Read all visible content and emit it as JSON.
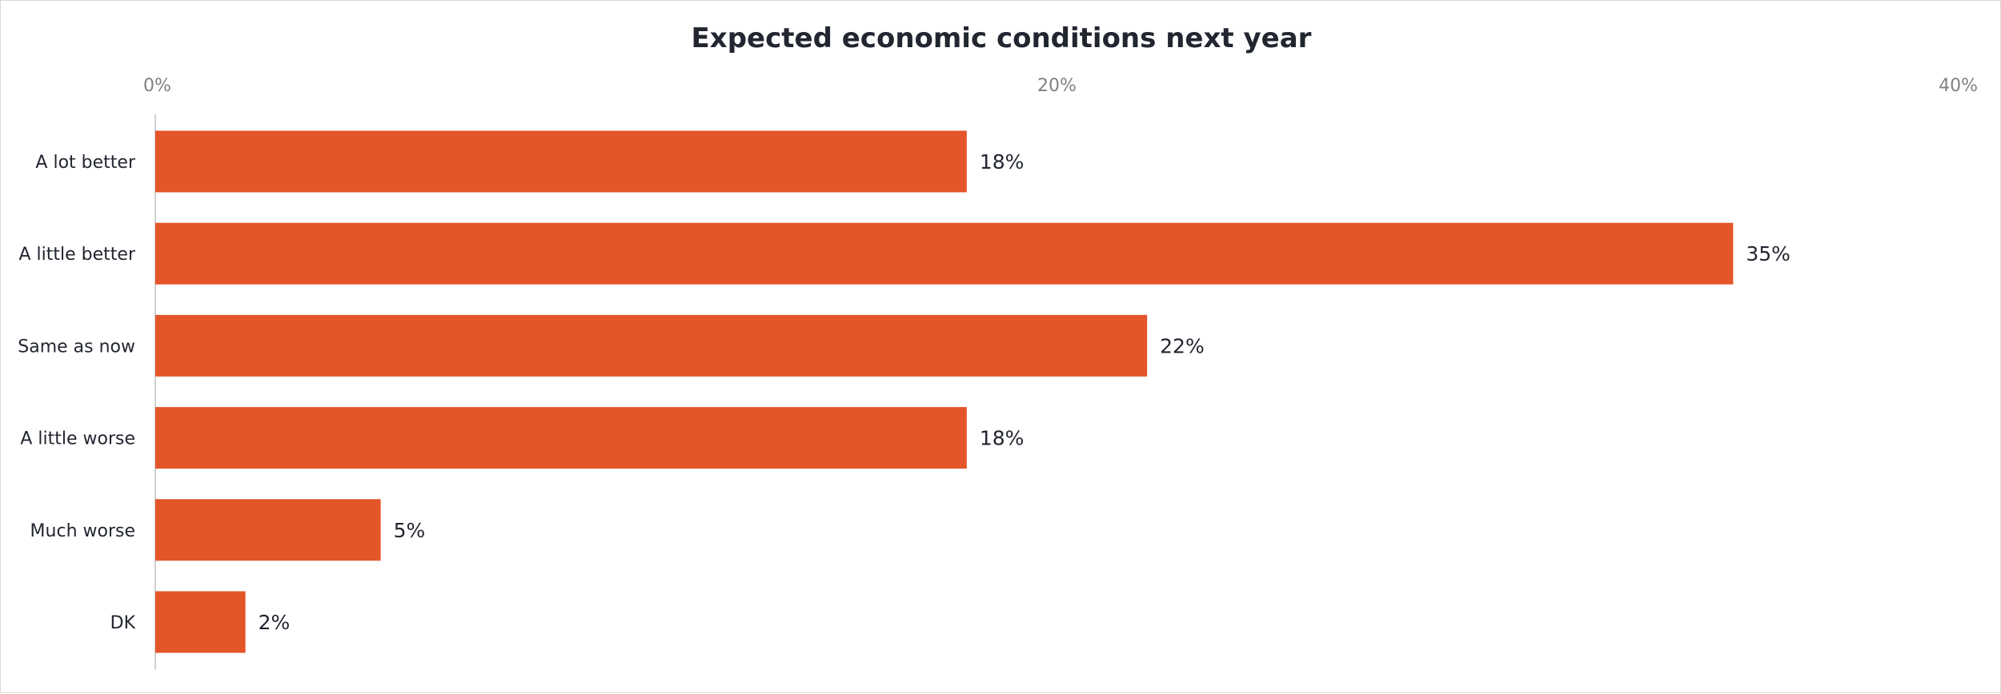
{
  "chart_data": {
    "type": "bar",
    "orientation": "horizontal",
    "title": "Expected economic conditions next year",
    "categories": [
      "A lot better",
      "A little better",
      "Same as now",
      "A little worse",
      "Much worse",
      "DK"
    ],
    "values": [
      18,
      35,
      22,
      18,
      5,
      2
    ],
    "value_labels": [
      "18%",
      "35%",
      "22%",
      "18%",
      "5%",
      "2%"
    ],
    "xlim": [
      0,
      40
    ],
    "ticks": [
      0,
      20,
      40
    ],
    "tick_labels": [
      "0%",
      "20%",
      "40%"
    ],
    "xaxis_position": "top",
    "grid": false,
    "bar_color": "#E4552A"
  }
}
